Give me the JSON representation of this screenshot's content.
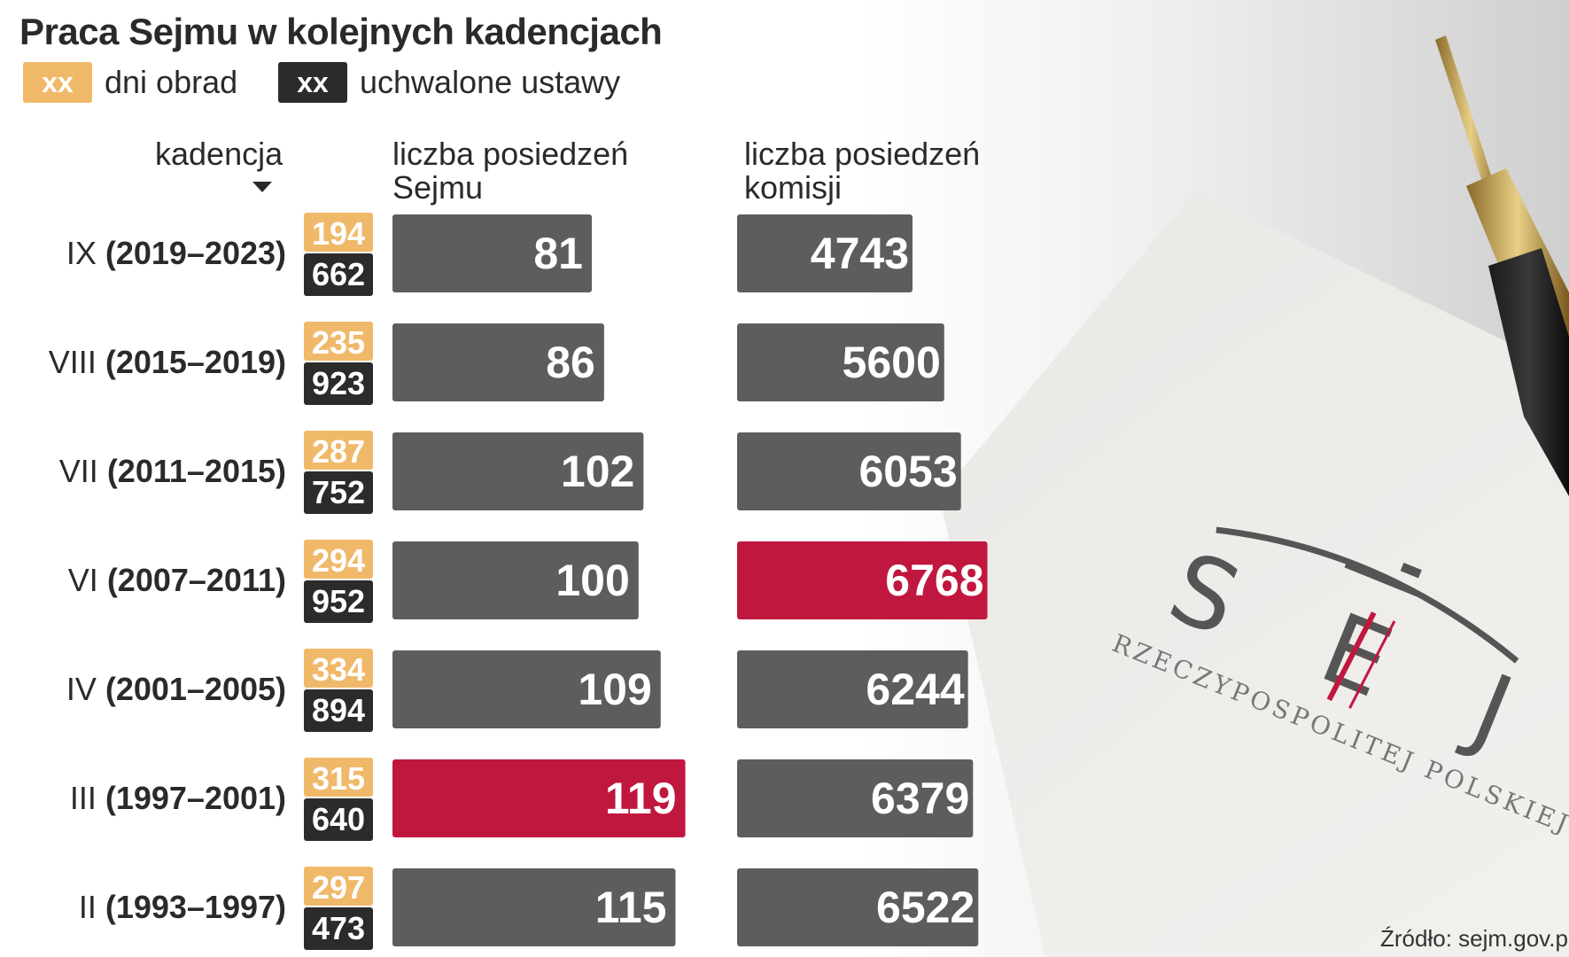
{
  "title": "Praca Sejmu w kolejnych kadencjach",
  "legend": [
    {
      "box": "xx",
      "label": "dni obrad",
      "color": "#f0b96a"
    },
    {
      "box": "xx",
      "label": "uchwalone ustawy",
      "color": "#2b2b2b"
    }
  ],
  "headers": {
    "term": "kadencja",
    "sejm_line1": "liczba posiedzeń",
    "sejm_line2": "Sejmu",
    "committee_line1": "liczba posiedzeń",
    "committee_line2": "komisji"
  },
  "source": "Źródło: sejm.gov.pl",
  "colors": {
    "bar": "#5d5d5d",
    "highlight": "#c0173f",
    "days_badge": "#f0b96a",
    "laws_badge": "#2b2b2b"
  },
  "background_image": {
    "logo_lines": [
      "S E J M",
      "RZECZYPOSPOLITEJ POLSKIEJ"
    ]
  },
  "chart_data": {
    "type": "bar",
    "orientation": "horizontal",
    "categories": [
      "IX (2019–2023)",
      "VIII (2015–2019)",
      "VII (2011–2015)",
      "VI (2007–2011)",
      "IV (2001–2005)",
      "III (1997–2001)",
      "II (1993–1997)"
    ],
    "terms": [
      {
        "roman": "IX",
        "years": "(2019–2023)"
      },
      {
        "roman": "VIII",
        "years": "(2015–2019)"
      },
      {
        "roman": "VII",
        "years": "(2011–2015)"
      },
      {
        "roman": "VI",
        "years": "(2007–2011)"
      },
      {
        "roman": "IV",
        "years": "(2001–2005)"
      },
      {
        "roman": "III",
        "years": "(1997–2001)"
      },
      {
        "roman": "II",
        "years": "(1993–1997)"
      }
    ],
    "series": [
      {
        "name": "dni obrad",
        "values": [
          194,
          235,
          287,
          294,
          334,
          315,
          297
        ]
      },
      {
        "name": "uchwalone ustawy",
        "values": [
          662,
          923,
          752,
          952,
          894,
          640,
          473
        ]
      },
      {
        "name": "liczba posiedzeń Sejmu",
        "values": [
          81,
          86,
          102,
          100,
          109,
          119,
          115
        ],
        "highlight_index": 5
      },
      {
        "name": "liczba posiedzeń komisji",
        "values": [
          4743,
          5600,
          6053,
          6768,
          6244,
          6379,
          6522
        ],
        "highlight_index": 3
      }
    ]
  }
}
